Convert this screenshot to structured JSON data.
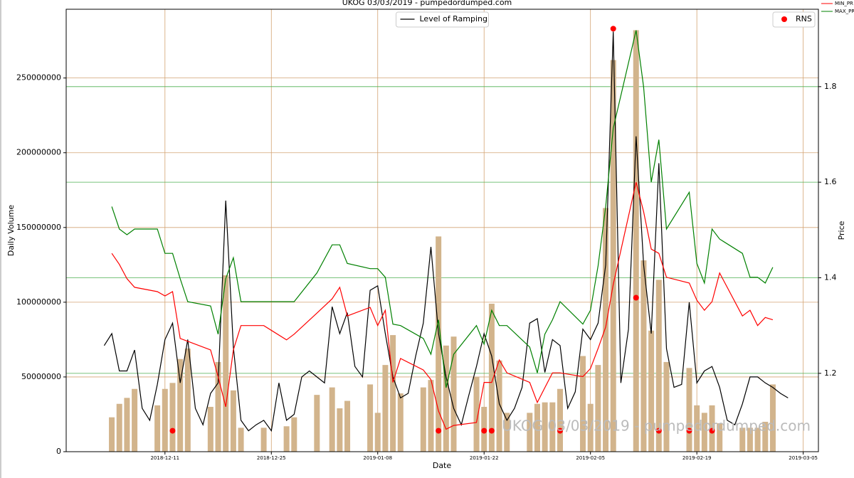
{
  "chart_data": {
    "type": "combo",
    "title": "UKOG 03/03/2019 - pumpedordumped.com",
    "watermark": "UKOG 03/03/2019 - pumpedordumped.com",
    "x_label": "Date",
    "y_label": "Daily Volume",
    "y2_label": "Price",
    "xlim": [
      "2018-11-28",
      "2019-03-07"
    ],
    "xticks": [
      "2018-12-11",
      "2018-12-25",
      "2019-01-08",
      "2019-01-22",
      "2019-02-05",
      "2019-02-19",
      "2019-03-05"
    ],
    "ylim": [
      0,
      296000000
    ],
    "yticks": [
      0,
      50000000,
      100000000,
      150000000,
      200000000,
      250000000
    ],
    "y2lim": [
      1.036,
      1.962
    ],
    "y2ticks": [
      1.2,
      1.4,
      1.6,
      1.8
    ],
    "grid": true,
    "grid_color": "#d4a373",
    "y2_grid_color": "#4caf50",
    "series": [
      {
        "type": "bar",
        "color": "#d2b48c",
        "x": [
          "2018-12-04",
          "2018-12-05",
          "2018-12-06",
          "2018-12-07",
          "2018-12-10",
          "2018-12-11",
          "2018-12-12",
          "2018-12-13",
          "2018-12-14",
          "2018-12-17",
          "2018-12-18",
          "2018-12-19",
          "2018-12-20",
          "2018-12-21",
          "2018-12-24",
          "2018-12-27",
          "2018-12-28",
          "2018-12-31",
          "2019-01-02",
          "2019-01-03",
          "2019-01-04",
          "2019-01-07",
          "2019-01-08",
          "2019-01-09",
          "2019-01-10",
          "2019-01-11",
          "2019-01-14",
          "2019-01-15",
          "2019-01-16",
          "2019-01-17",
          "2019-01-18",
          "2019-01-21",
          "2019-01-22",
          "2019-01-23",
          "2019-01-24",
          "2019-01-25",
          "2019-01-28",
          "2019-01-29",
          "2019-01-30",
          "2019-01-31",
          "2019-02-01",
          "2019-02-04",
          "2019-02-05",
          "2019-02-06",
          "2019-02-07",
          "2019-02-08",
          "2019-02-11",
          "2019-02-12",
          "2019-02-13",
          "2019-02-14",
          "2019-02-15",
          "2019-02-18",
          "2019-02-19",
          "2019-02-20",
          "2019-02-21",
          "2019-02-22",
          "2019-02-25",
          "2019-02-26",
          "2019-02-27",
          "2019-02-28",
          "2019-03-01"
        ],
        "values": [
          23000000,
          32000000,
          36000000,
          42000000,
          31000000,
          42000000,
          46000000,
          62000000,
          69000000,
          30000000,
          60000000,
          118000000,
          41000000,
          16000000,
          16000000,
          17000000,
          23000000,
          38000000,
          43000000,
          29000000,
          34000000,
          45000000,
          26000000,
          58000000,
          78000000,
          39000000,
          43000000,
          48000000,
          144000000,
          71000000,
          77000000,
          50000000,
          30000000,
          99000000,
          61000000,
          26000000,
          26000000,
          32000000,
          33000000,
          33000000,
          42000000,
          64000000,
          32000000,
          58000000,
          163000000,
          262000000,
          282000000,
          128000000,
          81000000,
          115000000,
          60000000,
          56000000,
          31000000,
          26000000,
          31000000,
          19000000,
          16000000,
          16000000,
          16000000,
          20000000,
          45000000
        ]
      },
      {
        "type": "line",
        "name": "Level of Ramping",
        "color": "#000000",
        "legend": "upper center",
        "x": [
          "2018-12-03",
          "2018-12-04",
          "2018-12-05",
          "2018-12-06",
          "2018-12-07",
          "2018-12-08",
          "2018-12-09",
          "2018-12-10",
          "2018-12-11",
          "2018-12-12",
          "2018-12-13",
          "2018-12-14",
          "2018-12-15",
          "2018-12-16",
          "2018-12-17",
          "2018-12-18",
          "2018-12-19",
          "2018-12-20",
          "2018-12-21",
          "2018-12-22",
          "2018-12-23",
          "2018-12-24",
          "2018-12-25",
          "2018-12-26",
          "2018-12-27",
          "2018-12-28",
          "2018-12-29",
          "2018-12-30",
          "2018-12-31",
          "2019-01-01",
          "2019-01-02",
          "2019-01-03",
          "2019-01-04",
          "2019-01-05",
          "2019-01-06",
          "2019-01-07",
          "2019-01-08",
          "2019-01-09",
          "2019-01-10",
          "2019-01-11",
          "2019-01-12",
          "2019-01-13",
          "2019-01-14",
          "2019-01-15",
          "2019-01-16",
          "2019-01-17",
          "2019-01-18",
          "2019-01-19",
          "2019-01-20",
          "2019-01-21",
          "2019-01-22",
          "2019-01-23",
          "2019-01-24",
          "2019-01-25",
          "2019-01-26",
          "2019-01-27",
          "2019-01-28",
          "2019-01-29",
          "2019-01-30",
          "2019-01-31",
          "2019-02-01",
          "2019-02-02",
          "2019-02-03",
          "2019-02-04",
          "2019-02-05",
          "2019-02-06",
          "2019-02-07",
          "2019-02-08",
          "2019-02-09",
          "2019-02-10",
          "2019-02-11",
          "2019-02-12",
          "2019-02-13",
          "2019-02-14",
          "2019-02-15",
          "2019-02-16",
          "2019-02-17",
          "2019-02-18",
          "2019-02-19",
          "2019-02-20",
          "2019-02-21",
          "2019-02-22",
          "2019-02-23",
          "2019-02-24",
          "2019-02-25",
          "2019-02-26",
          "2019-02-27",
          "2019-02-28",
          "2019-03-01",
          "2019-03-02",
          "2019-03-03"
        ],
        "values": [
          71000000,
          79000000,
          54000000,
          54000000,
          68000000,
          29000000,
          21000000,
          45000000,
          75000000,
          86000000,
          46000000,
          75000000,
          29000000,
          18000000,
          39000000,
          46000000,
          168000000,
          70000000,
          21000000,
          14000000,
          18000000,
          21000000,
          14000000,
          46000000,
          21000000,
          25000000,
          50000000,
          54000000,
          50000000,
          46000000,
          97000000,
          79000000,
          93000000,
          57000000,
          50000000,
          108000000,
          111000000,
          79000000,
          50000000,
          36000000,
          39000000,
          64000000,
          86000000,
          137000000,
          79000000,
          50000000,
          29000000,
          18000000,
          38000000,
          57000000,
          79000000,
          64000000,
          32000000,
          21000000,
          29000000,
          43000000,
          86000000,
          89000000,
          53000000,
          75000000,
          71000000,
          29000000,
          40000000,
          82000000,
          75000000,
          86000000,
          125000000,
          281000000,
          46000000,
          82000000,
          211000000,
          125000000,
          79000000,
          193000000,
          69000000,
          43000000,
          45000000,
          100000000,
          46000000,
          54000000,
          57000000,
          43000000,
          21000000,
          18000000,
          32000000,
          50000000,
          50000000,
          46000000,
          43000000,
          39000000,
          36000000
        ]
      },
      {
        "type": "line",
        "name": "MIN_PR",
        "color": "#ff0000",
        "axis": "y2",
        "legend": "outside",
        "x": [
          "2018-12-04",
          "2018-12-05",
          "2018-12-06",
          "2018-12-07",
          "2018-12-10",
          "2018-12-11",
          "2018-12-12",
          "2018-12-13",
          "2018-12-14",
          "2018-12-17",
          "2018-12-18",
          "2018-12-19",
          "2018-12-20",
          "2018-12-21",
          "2018-12-24",
          "2018-12-27",
          "2018-12-28",
          "2018-12-31",
          "2019-01-02",
          "2019-01-03",
          "2019-01-04",
          "2019-01-07",
          "2019-01-08",
          "2019-01-09",
          "2019-01-10",
          "2019-01-11",
          "2019-01-14",
          "2019-01-15",
          "2019-01-16",
          "2019-01-17",
          "2019-01-18",
          "2019-01-21",
          "2019-01-22",
          "2019-01-23",
          "2019-01-24",
          "2019-01-25",
          "2019-01-28",
          "2019-01-29",
          "2019-01-30",
          "2019-01-31",
          "2019-02-01",
          "2019-02-04",
          "2019-02-05",
          "2019-02-06",
          "2019-02-07",
          "2019-02-08",
          "2019-02-11",
          "2019-02-12",
          "2019-02-13",
          "2019-02-14",
          "2019-02-15",
          "2019-02-18",
          "2019-02-19",
          "2019-02-20",
          "2019-02-21",
          "2019-02-22",
          "2019-02-25",
          "2019-02-26",
          "2019-02-27",
          "2019-02-28",
          "2019-03-01"
        ],
        "values": [
          1.451,
          1.428,
          1.398,
          1.38,
          1.371,
          1.362,
          1.371,
          1.273,
          1.267,
          1.249,
          1.193,
          1.13,
          1.249,
          1.3,
          1.3,
          1.27,
          1.282,
          1.326,
          1.356,
          1.38,
          1.32,
          1.338,
          1.3,
          1.332,
          1.181,
          1.231,
          1.207,
          1.187,
          1.121,
          1.083,
          1.091,
          1.097,
          1.181,
          1.181,
          1.228,
          1.201,
          1.181,
          1.139,
          1.17,
          1.201,
          1.201,
          1.193,
          1.21,
          1.252,
          1.297,
          1.386,
          1.6,
          1.538,
          1.46,
          1.451,
          1.401,
          1.389,
          1.353,
          1.332,
          1.35,
          1.41,
          1.32,
          1.332,
          1.3,
          1.317,
          1.312
        ]
      },
      {
        "type": "line",
        "name": "MAX_PR",
        "color": "#008000",
        "axis": "y2",
        "legend": "outside",
        "x": [
          "2018-12-04",
          "2018-12-05",
          "2018-12-06",
          "2018-12-07",
          "2018-12-10",
          "2018-12-11",
          "2018-12-12",
          "2018-12-13",
          "2018-12-14",
          "2018-12-17",
          "2018-12-18",
          "2018-12-19",
          "2018-12-20",
          "2018-12-21",
          "2018-12-24",
          "2018-12-27",
          "2018-12-28",
          "2018-12-31",
          "2019-01-02",
          "2019-01-03",
          "2019-01-04",
          "2019-01-07",
          "2019-01-08",
          "2019-01-09",
          "2019-01-10",
          "2019-01-11",
          "2019-01-14",
          "2019-01-15",
          "2019-01-16",
          "2019-01-17",
          "2019-01-18",
          "2019-01-21",
          "2019-01-22",
          "2019-01-23",
          "2019-01-24",
          "2019-01-25",
          "2019-01-28",
          "2019-01-29",
          "2019-01-30",
          "2019-01-31",
          "2019-02-01",
          "2019-02-04",
          "2019-02-05",
          "2019-02-06",
          "2019-02-07",
          "2019-02-08",
          "2019-02-11",
          "2019-02-12",
          "2019-02-13",
          "2019-02-14",
          "2019-02-15",
          "2019-02-18",
          "2019-02-19",
          "2019-02-20",
          "2019-02-21",
          "2019-02-22",
          "2019-02-25",
          "2019-02-26",
          "2019-02-27",
          "2019-02-28",
          "2019-03-01"
        ],
        "values": [
          1.549,
          1.502,
          1.49,
          1.502,
          1.502,
          1.451,
          1.451,
          1.398,
          1.35,
          1.341,
          1.282,
          1.398,
          1.442,
          1.35,
          1.35,
          1.35,
          1.35,
          1.41,
          1.469,
          1.469,
          1.43,
          1.419,
          1.419,
          1.401,
          1.303,
          1.3,
          1.273,
          1.24,
          1.312,
          1.17,
          1.24,
          1.3,
          1.261,
          1.332,
          1.3,
          1.3,
          1.255,
          1.201,
          1.282,
          1.312,
          1.35,
          1.303,
          1.332,
          1.425,
          1.549,
          1.713,
          1.918,
          1.799,
          1.6,
          1.689,
          1.502,
          1.579,
          1.43,
          1.389,
          1.502,
          1.481,
          1.451,
          1.401,
          1.401,
          1.389,
          1.422
        ]
      },
      {
        "type": "scatter",
        "name": "RNS",
        "color": "#ff0000",
        "legend": "upper right",
        "x": [
          "2018-12-12",
          "2019-01-16",
          "2019-01-22",
          "2019-01-23",
          "2019-02-01",
          "2019-02-08",
          "2019-02-11",
          "2019-02-14",
          "2019-02-18",
          "2019-02-21"
        ],
        "values": [
          14000000,
          14000000,
          14000000,
          14000000,
          14000000,
          283000000,
          103000000,
          14000000,
          14000000,
          14000000
        ]
      }
    ]
  }
}
